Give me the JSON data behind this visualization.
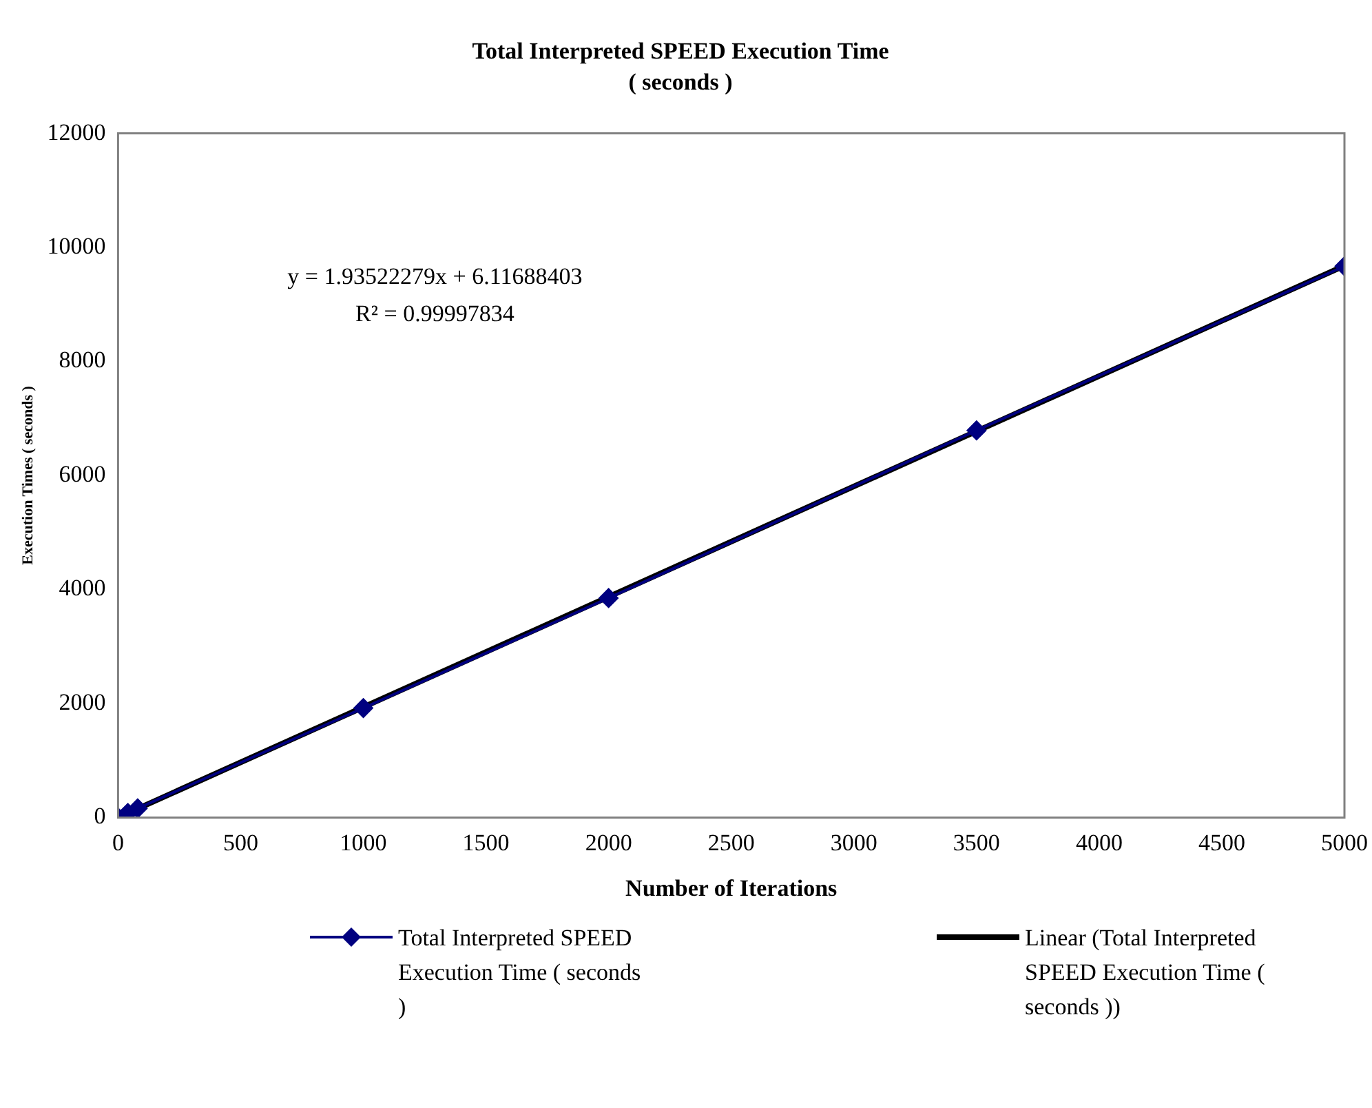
{
  "chart_data": {
    "type": "line",
    "title": "Total Interpreted SPEED Execution Time",
    "subtitle": "( seconds )",
    "xlabel": "Number of Iterations",
    "ylabel": "Execution Times ( seconds )",
    "xlim": [
      0,
      5000
    ],
    "xticks": [
      0,
      500,
      1000,
      1500,
      2000,
      2500,
      3000,
      3500,
      4000,
      4500,
      5000
    ],
    "ylim": [
      0,
      12000
    ],
    "yticks": [
      0,
      2000,
      4000,
      6000,
      8000,
      10000,
      12000
    ],
    "grid": false,
    "legend": "bottom",
    "marker": "diamond",
    "line_style": "solid",
    "annotations": [
      "y = 1.93522279x + 6.11688403",
      "R² = 0.99997834"
    ],
    "series": [
      {
        "name": "Total Interpreted SPEED Execution Time ( seconds )",
        "color": "#000080",
        "x": [
          0,
          40,
          80,
          1000,
          2000,
          3500,
          5000
        ],
        "values": [
          0,
          80,
          160,
          1920,
          3850,
          6790,
          9670
        ]
      },
      {
        "type": "line",
        "name": "Linear (Total Interpreted SPEED Execution Time ( seconds ))",
        "color": "#000000",
        "marker": "none",
        "x": [
          0,
          5000
        ],
        "values": [
          0,
          9680
        ]
      }
    ]
  }
}
